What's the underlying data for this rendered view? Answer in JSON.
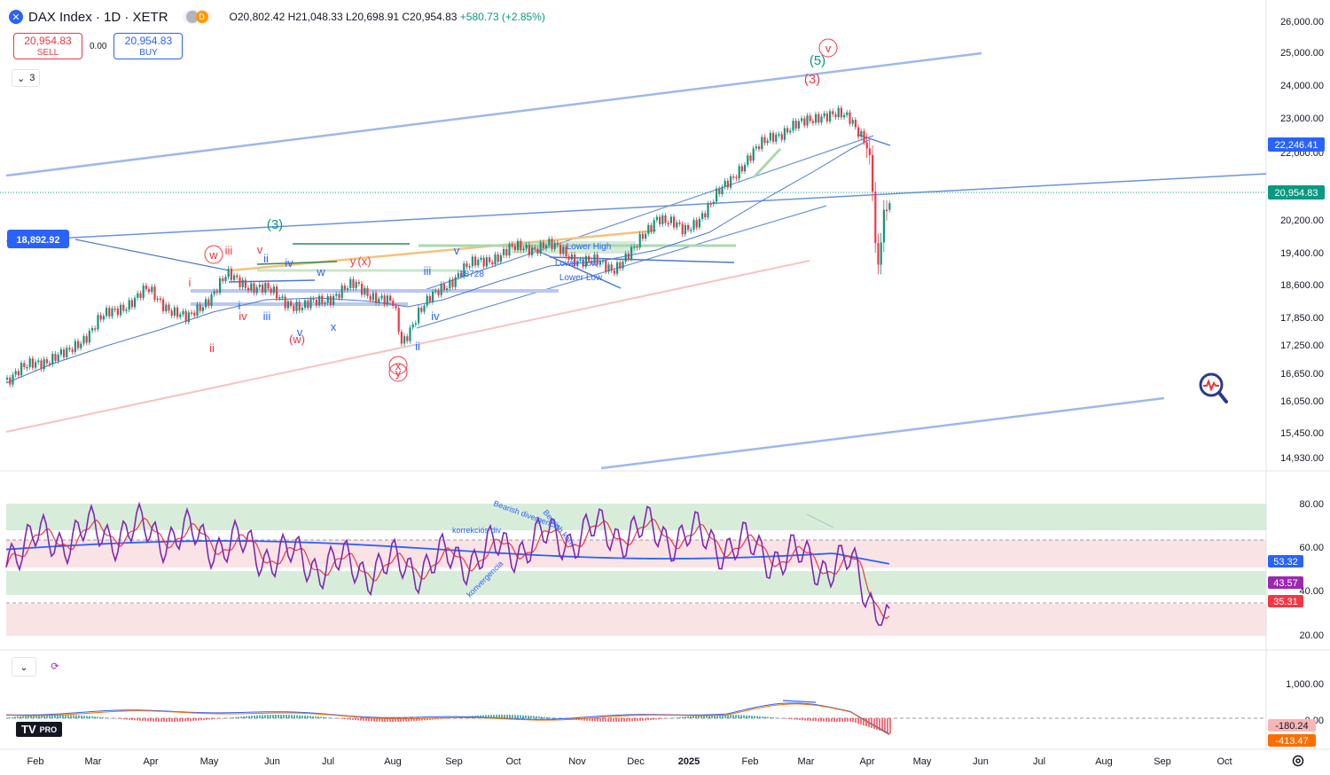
{
  "header": {
    "title": "DAX Index · 1D · XETR",
    "indicator_letter": "D",
    "ohlc": "O20,802.42 H21,048.33 L20,698.91 C20,954.83",
    "change": "+580.73 (+2.85%)"
  },
  "trade": {
    "sell_price": "20,954.83",
    "sell_label": "SELL",
    "spread": "0.00",
    "buy_price": "20,954.83",
    "buy_label": "BUY"
  },
  "legend_toggle": "3",
  "logo_text": "TV",
  "logo_badge": "PRO",
  "colors": {
    "up": "#089981",
    "down": "#f23645",
    "accent": "#2962ff",
    "rsi": "#7e27b4",
    "rsi_ma": "#f23645",
    "trend": "#5b8fd9"
  },
  "chart_data": {
    "type": "candlestick",
    "price_axis": [
      "26,000.00",
      "25,000.00",
      "24,000.00",
      "23,000.00",
      "22,000.00",
      "20,200.00",
      "19,400.00",
      "18,600.00",
      "17,850.00",
      "17,250.00",
      "16,650.00",
      "16,050.00",
      "15,450.00",
      "14,930.00"
    ],
    "price_badges": [
      {
        "label": "22,246.41",
        "color": "#2962ff"
      },
      {
        "label": "20,954.83",
        "color": "#089981"
      }
    ],
    "left_badge": "18,892.92",
    "time_axis": [
      "Feb",
      "Mar",
      "Apr",
      "May",
      "Jun",
      "Jul",
      "Aug",
      "Sep",
      "Oct",
      "Nov",
      "Dec",
      "2025",
      "Feb",
      "Mar",
      "Apr",
      "May",
      "Jun",
      "Jul",
      "Aug",
      "Sep",
      "Oct"
    ],
    "waves": [
      {
        "t": "(3)",
        "c": "#089981",
        "big": true
      },
      {
        "t": "(5)",
        "c": "#089981",
        "big": true
      },
      {
        "t": "(3)",
        "c": "#f23645",
        "big": true
      },
      {
        "t": "v",
        "c": "#f23645",
        "circle": true
      },
      {
        "t": "w",
        "c": "#f23645",
        "circle": true
      },
      {
        "t": "iii",
        "c": "#f23645"
      },
      {
        "t": "v",
        "c": "#f23645"
      },
      {
        "t": "i",
        "c": "#f23645"
      },
      {
        "t": "ii",
        "c": "#f23645"
      },
      {
        "t": "iv",
        "c": "#f23645"
      },
      {
        "t": "(w)",
        "c": "#f23645"
      },
      {
        "t": "y",
        "c": "#f23645"
      },
      {
        "t": "(x)",
        "c": "#f23645"
      },
      {
        "t": "x",
        "c": "#f23645",
        "circle": true
      },
      {
        "t": "y",
        "c": "#f23645",
        "circle": true
      },
      {
        "t": "ii",
        "c": "#2962ff"
      },
      {
        "t": "iv",
        "c": "#2962ff"
      },
      {
        "t": "w",
        "c": "#2962ff"
      },
      {
        "t": "i",
        "c": "#2962ff"
      },
      {
        "t": "iii",
        "c": "#2962ff"
      },
      {
        "t": "v",
        "c": "#2962ff"
      },
      {
        "t": "x",
        "c": "#2962ff"
      },
      {
        "t": "iii",
        "c": "#2962ff"
      },
      {
        "t": "iv",
        "c": "#2962ff"
      },
      {
        "t": "ii",
        "c": "#2962ff"
      },
      {
        "t": "v",
        "c": "#2962ff"
      },
      {
        "t": "18728",
        "c": "#2962ff"
      },
      {
        "t": "Lower High",
        "c": "#2962ff"
      },
      {
        "t": "Lower Low",
        "c": "#2962ff"
      },
      {
        "t": "Lower Low",
        "c": "#2962ff"
      }
    ],
    "rsi": {
      "axis": [
        "80.00",
        "60.00",
        "40.00",
        "20.00"
      ],
      "badges": [
        {
          "label": "53.32",
          "color": "#2962ff"
        },
        {
          "label": "43.57",
          "color": "#9c27b0"
        },
        {
          "label": "35.31",
          "color": "#f23645"
        }
      ],
      "annotations": [
        "Bearish divergencia",
        "Bearish konv",
        "korrekciós div",
        "konvergencia"
      ]
    },
    "macd": {
      "axis": [
        "1,000.00",
        "0.00"
      ],
      "badges": [
        {
          "label": "-180.24",
          "color": "#f7b5b5",
          "text": "#131722"
        },
        {
          "label": "-413.47",
          "color": "#ff6d00",
          "text": "#ffffff"
        }
      ]
    }
  }
}
